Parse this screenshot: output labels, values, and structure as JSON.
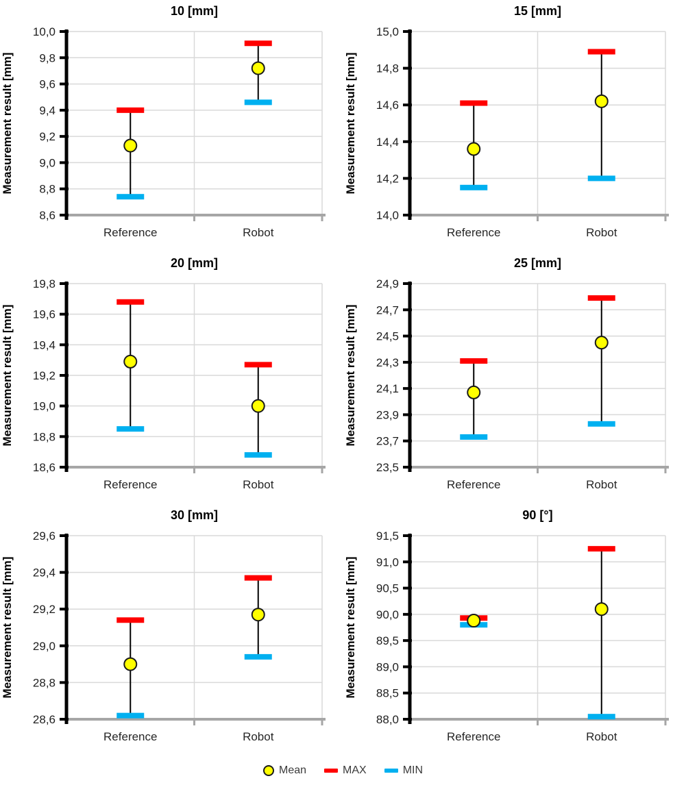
{
  "figure": {
    "legend": [
      {
        "label": "Mean",
        "marker": "circle",
        "color": "#FFFF00",
        "outline": "#1a1a1a"
      },
      {
        "label": "MAX",
        "marker": "dash",
        "color": "#FF0000"
      },
      {
        "label": "MIN",
        "marker": "dash",
        "color": "#00B0F0"
      }
    ],
    "colors": {
      "gridline": "#D9D9D9",
      "y_axis": "#000000",
      "x_axis": "#A6A6A6",
      "text": "#1f1f1f",
      "error_line": "#000000"
    }
  },
  "chart_data": [
    {
      "type": "scatter",
      "title": "10 [mm]",
      "ylabel": "Measurement result [mm]",
      "categories": [
        "Reference",
        "Robot"
      ],
      "ylim": [
        8.6,
        10.0
      ],
      "ytick_step": 0.2,
      "ytick_labels": [
        "8,6",
        "8,8",
        "9,0",
        "9,2",
        "9,4",
        "9,6",
        "9,8",
        "10,0"
      ],
      "grid": true,
      "legend_position": "none",
      "series": [
        {
          "name": "Mean",
          "marker": "circle",
          "color": "#FFFF00",
          "values": [
            9.13,
            9.72
          ]
        },
        {
          "name": "MAX",
          "marker": "dash",
          "color": "#FF0000",
          "values": [
            9.4,
            9.91
          ]
        },
        {
          "name": "MIN",
          "marker": "dash",
          "color": "#00B0F0",
          "values": [
            8.74,
            9.46
          ]
        }
      ]
    },
    {
      "type": "scatter",
      "title": "15 [mm]",
      "ylabel": "Measurement result [mm]",
      "categories": [
        "Reference",
        "Robot"
      ],
      "ylim": [
        14.0,
        15.0
      ],
      "ytick_step": 0.2,
      "ytick_labels": [
        "14,0",
        "14,2",
        "14,4",
        "14,6",
        "14,8",
        "15,0"
      ],
      "grid": true,
      "legend_position": "none",
      "series": [
        {
          "name": "Mean",
          "marker": "circle",
          "color": "#FFFF00",
          "values": [
            14.36,
            14.62
          ]
        },
        {
          "name": "MAX",
          "marker": "dash",
          "color": "#FF0000",
          "values": [
            14.61,
            14.89
          ]
        },
        {
          "name": "MIN",
          "marker": "dash",
          "color": "#00B0F0",
          "values": [
            14.15,
            14.2
          ]
        }
      ]
    },
    {
      "type": "scatter",
      "title": "20 [mm]",
      "ylabel": "Measurement result [mm]",
      "categories": [
        "Reference",
        "Robot"
      ],
      "ylim": [
        18.6,
        19.8
      ],
      "ytick_step": 0.2,
      "ytick_labels": [
        "18,6",
        "18,8",
        "19,0",
        "19,2",
        "19,4",
        "19,6",
        "19,8"
      ],
      "grid": true,
      "legend_position": "none",
      "series": [
        {
          "name": "Mean",
          "marker": "circle",
          "color": "#FFFF00",
          "values": [
            19.29,
            19.0
          ]
        },
        {
          "name": "MAX",
          "marker": "dash",
          "color": "#FF0000",
          "values": [
            19.68,
            19.27
          ]
        },
        {
          "name": "MIN",
          "marker": "dash",
          "color": "#00B0F0",
          "values": [
            18.85,
            18.68
          ]
        }
      ]
    },
    {
      "type": "scatter",
      "title": "25 [mm]",
      "ylabel": "Measurement result [mm]",
      "categories": [
        "Reference",
        "Robot"
      ],
      "ylim": [
        23.5,
        24.9
      ],
      "ytick_step": 0.2,
      "ytick_labels": [
        "23,5",
        "23,7",
        "23,9",
        "24,1",
        "24,3",
        "24,5",
        "24,7",
        "24,9"
      ],
      "grid": true,
      "legend_position": "none",
      "series": [
        {
          "name": "Mean",
          "marker": "circle",
          "color": "#FFFF00",
          "values": [
            24.07,
            24.45
          ]
        },
        {
          "name": "MAX",
          "marker": "dash",
          "color": "#FF0000",
          "values": [
            24.31,
            24.79
          ]
        },
        {
          "name": "MIN",
          "marker": "dash",
          "color": "#00B0F0",
          "values": [
            23.73,
            23.83
          ]
        }
      ]
    },
    {
      "type": "scatter",
      "title": "30 [mm]",
      "ylabel": "Measurement result [mm]",
      "categories": [
        "Reference",
        "Robot"
      ],
      "ylim": [
        28.6,
        29.6
      ],
      "ytick_step": 0.2,
      "ytick_labels": [
        "28,6",
        "28,8",
        "29,0",
        "29,2",
        "29,4",
        "29,6"
      ],
      "grid": true,
      "legend_position": "none",
      "series": [
        {
          "name": "Mean",
          "marker": "circle",
          "color": "#FFFF00",
          "values": [
            28.9,
            29.17
          ]
        },
        {
          "name": "MAX",
          "marker": "dash",
          "color": "#FF0000",
          "values": [
            29.14,
            29.37
          ]
        },
        {
          "name": "MIN",
          "marker": "dash",
          "color": "#00B0F0",
          "values": [
            28.62,
            28.94
          ]
        }
      ]
    },
    {
      "type": "scatter",
      "title": "90 [°]",
      "ylabel": "Measurement result [mm]",
      "categories": [
        "Reference",
        "Robot"
      ],
      "ylim": [
        88.0,
        91.5
      ],
      "ytick_step": 0.5,
      "ytick_labels": [
        "88,0",
        "88,5",
        "89,0",
        "89,5",
        "90,0",
        "90,5",
        "91,0",
        "91,5"
      ],
      "grid": true,
      "legend_position": "none",
      "series": [
        {
          "name": "Mean",
          "marker": "circle",
          "color": "#FFFF00",
          "values": [
            89.88,
            90.1
          ]
        },
        {
          "name": "MAX",
          "marker": "dash",
          "color": "#FF0000",
          "values": [
            89.93,
            91.25
          ]
        },
        {
          "name": "MIN",
          "marker": "dash",
          "color": "#00B0F0",
          "values": [
            89.8,
            88.05
          ]
        }
      ]
    }
  ]
}
